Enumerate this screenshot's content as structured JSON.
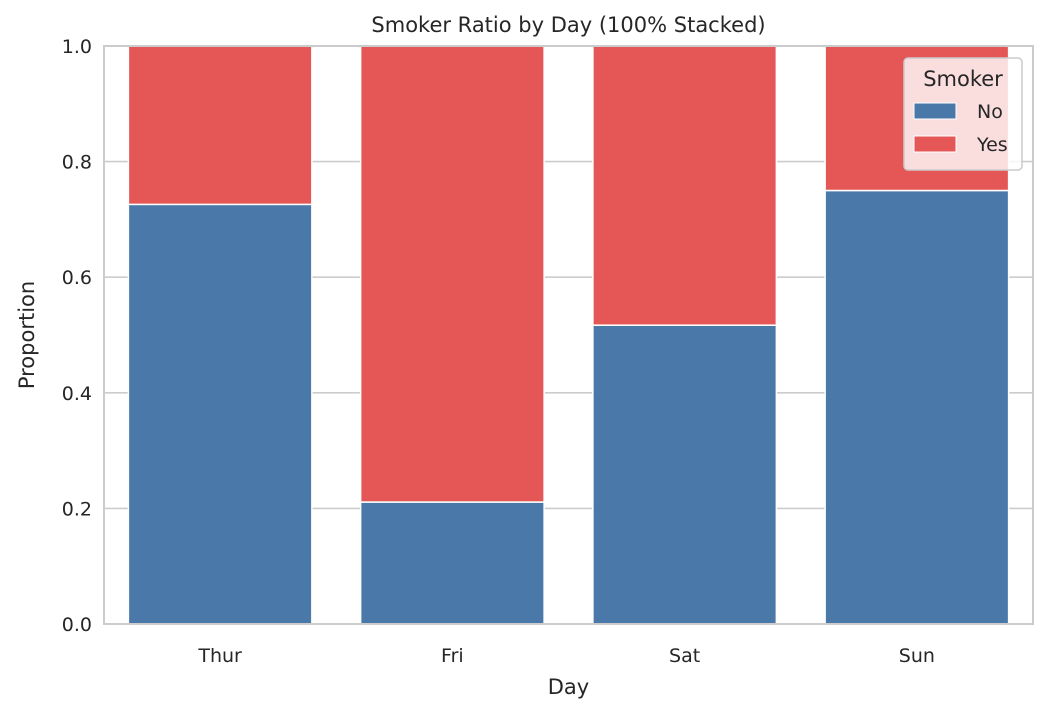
{
  "chart_data": {
    "type": "bar",
    "stacked": true,
    "title": "Smoker Ratio by Day (100% Stacked)",
    "xlabel": "Day",
    "ylabel": "Proportion",
    "categories": [
      "Thur",
      "Fri",
      "Sat",
      "Sun"
    ],
    "series": [
      {
        "name": "No",
        "values": [
          0.726,
          0.211,
          0.517,
          0.75
        ],
        "color": "#4a78a8"
      },
      {
        "name": "Yes",
        "values": [
          0.274,
          0.789,
          0.483,
          0.25
        ],
        "color": "#e45756"
      }
    ],
    "ylim": [
      0,
      1.0
    ],
    "yticks": [
      0.0,
      0.2,
      0.4,
      0.6,
      0.8,
      1.0
    ],
    "ytick_labels": [
      "0.0",
      "0.2",
      "0.4",
      "0.6",
      "0.8",
      "1.0"
    ],
    "grid": "horizontal",
    "legend": {
      "title": "Smoker",
      "placement": "top-right"
    }
  }
}
